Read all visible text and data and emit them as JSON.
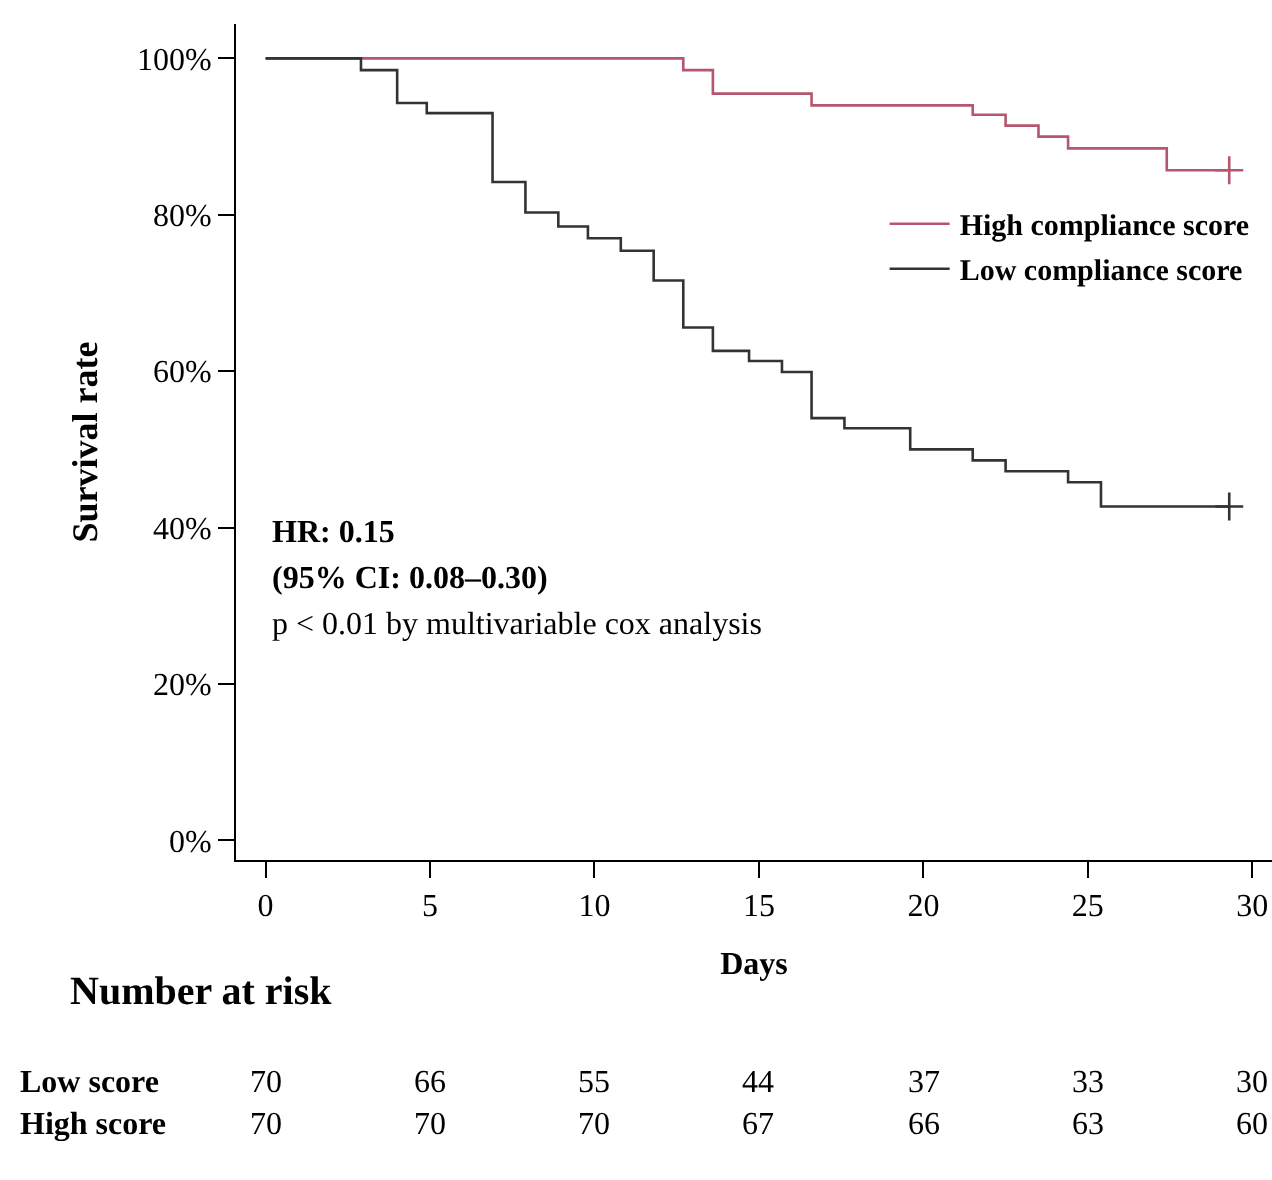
{
  "chart_data": {
    "type": "step",
    "xlabel": "Days",
    "ylabel": "Survival rate",
    "xlim": [
      -0.9,
      30.6
    ],
    "xticks": [
      0,
      5,
      10,
      15,
      20,
      25,
      30
    ],
    "ylim": [
      -2.5,
      104.4
    ],
    "yticks": [
      {
        "value": 0,
        "label": "0%"
      },
      {
        "value": 20,
        "label": "20%"
      },
      {
        "value": 40,
        "label": "40%"
      },
      {
        "value": 60,
        "label": "60%"
      },
      {
        "value": 80,
        "label": "80%"
      },
      {
        "value": 100,
        "label": "100%"
      }
    ],
    "grid": false,
    "legend": "top right",
    "series": [
      {
        "name": "High compliance score",
        "color": "#b5566e",
        "x": [
          0,
          12.7,
          13.6,
          16.6,
          21.5,
          22.5,
          23.5,
          24.4,
          27.4,
          29.3
        ],
        "values": [
          100,
          98.5,
          95.5,
          94,
          92.8,
          91.4,
          90,
          88.5,
          85.7,
          85.7
        ]
      },
      {
        "name": "Low compliance score",
        "color": "#333333",
        "x": [
          0,
          2.9,
          4,
          4.9,
          6.9,
          7.9,
          8.9,
          9.8,
          10.8,
          11.8,
          12.7,
          13.6,
          14.7,
          15.7,
          16.6,
          17.6,
          19.6,
          21.5,
          22.5,
          24.4,
          25.4,
          29.3
        ],
        "values": [
          100,
          98.5,
          94.3,
          93,
          84.2,
          80.3,
          78.5,
          77,
          75.4,
          71.6,
          65.6,
          62.6,
          61.3,
          59.9,
          54,
          52.7,
          50,
          48.6,
          47.2,
          45.8,
          42.7,
          42.7
        ]
      },
      {
        "type": "scatter",
        "color": "#b5566e",
        "x": [
          29.3
        ],
        "values": [
          85.7
        ]
      },
      {
        "type": "scatter",
        "color": "#333333",
        "x": [
          29.3
        ],
        "values": [
          42.7
        ]
      }
    ],
    "annotations": [
      "HR: 0.15",
      "(95% CI: 0.08–0.30)",
      "p < 0.01 by multivariable cox analysis",
      "Number at risk",
      "Low score",
      "70",
      "66",
      "55",
      "44",
      "37",
      "33",
      "30",
      "High score",
      "70",
      "70",
      "70",
      "67",
      "66",
      "63",
      "60"
    ]
  }
}
